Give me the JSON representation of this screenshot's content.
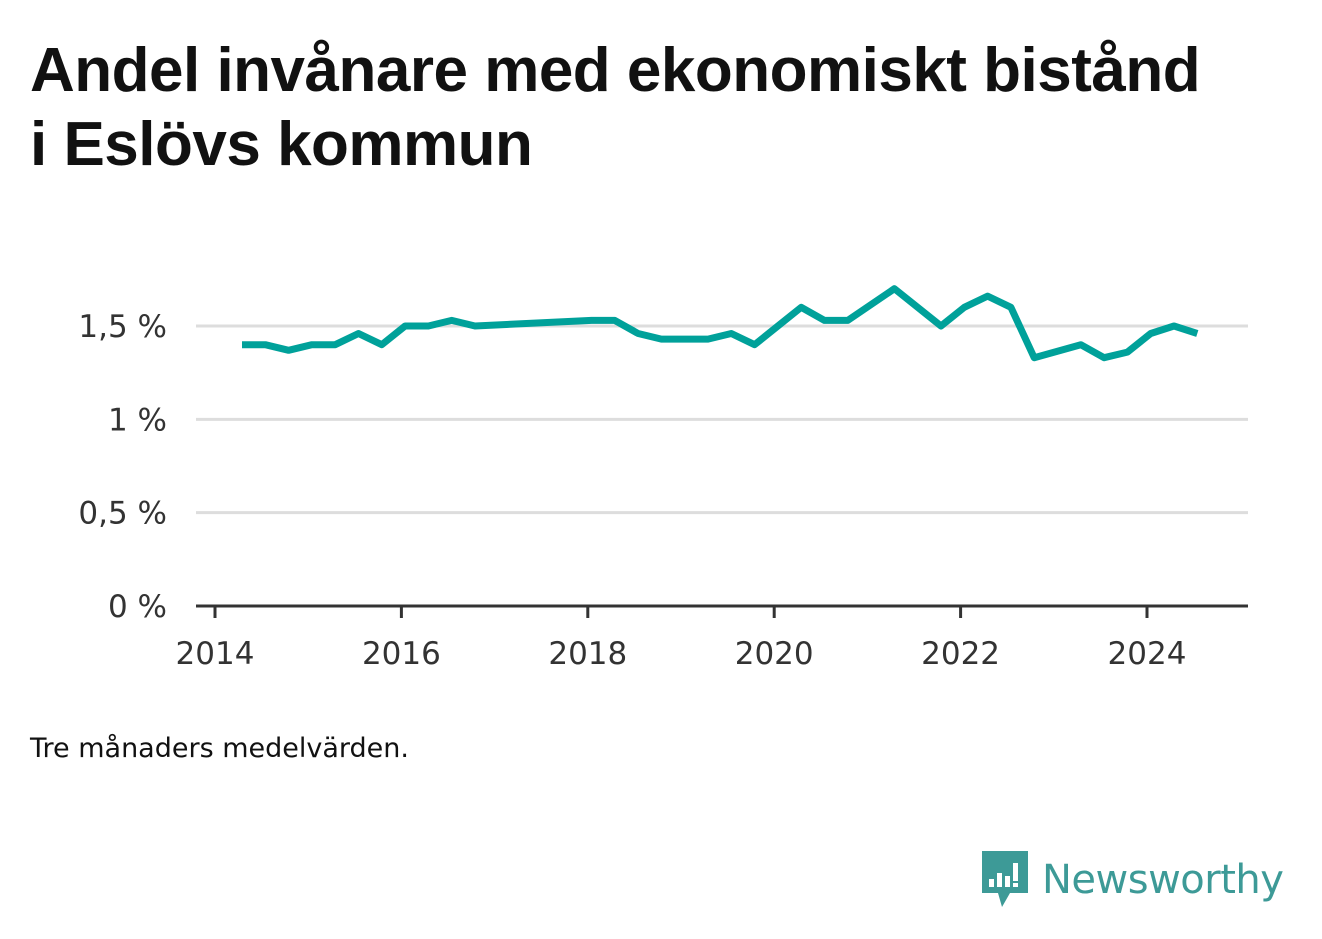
{
  "title": "Andel invånare med ekonomiskt bistånd i Eslövs kommun",
  "note": "Tre månaders medelvärden.",
  "brand": {
    "name": "Newsworthy",
    "icon": "newsworthy-logo-icon",
    "color": "#3d9a97"
  },
  "chart_data": {
    "type": "line",
    "title": "Andel invånare med ekonomiskt bistånd i Eslövs kommun",
    "xlabel": "",
    "ylabel": "",
    "xlim": [
      2014.0,
      2025.0
    ],
    "ylim": [
      0,
      1.8
    ],
    "grid": true,
    "legend": "none",
    "line_color": "#00a19a",
    "y_ticks": [
      {
        "value": 0,
        "label": "0 %"
      },
      {
        "value": 0.5,
        "label": "0,5 %"
      },
      {
        "value": 1,
        "label": "1 %"
      },
      {
        "value": 1.5,
        "label": "1,5 %"
      }
    ],
    "x_ticks": [
      {
        "value": 2014,
        "label": "2014"
      },
      {
        "value": 2016,
        "label": "2016"
      },
      {
        "value": 2018,
        "label": "2018"
      },
      {
        "value": 2020,
        "label": "2020"
      },
      {
        "value": 2022,
        "label": "2022"
      },
      {
        "value": 2024,
        "label": "2024"
      }
    ],
    "series": [
      {
        "x": [
          2014.29,
          2014.54,
          2014.79,
          2015.04,
          2015.29,
          2015.54,
          2015.79,
          2016.04,
          2016.29,
          2016.54,
          2016.79,
          2018.04,
          2018.29,
          2018.54,
          2018.79,
          2019.04,
          2019.29,
          2019.54,
          2019.79,
          2020.04,
          2020.29,
          2020.54,
          2020.79,
          2021.29,
          2021.79,
          2022.04,
          2022.29,
          2022.54,
          2022.79,
          2023.29,
          2023.54,
          2023.79,
          2024.04,
          2024.29,
          2024.54
        ],
        "y": [
          1.4,
          1.4,
          1.37,
          1.4,
          1.4,
          1.46,
          1.4,
          1.5,
          1.5,
          1.53,
          1.5,
          1.53,
          1.53,
          1.46,
          1.43,
          1.43,
          1.43,
          1.46,
          1.4,
          1.5,
          1.6,
          1.53,
          1.53,
          1.7,
          1.5,
          1.6,
          1.66,
          1.6,
          1.33,
          1.4,
          1.33,
          1.36,
          1.46,
          1.5,
          1.46
        ]
      }
    ]
  }
}
